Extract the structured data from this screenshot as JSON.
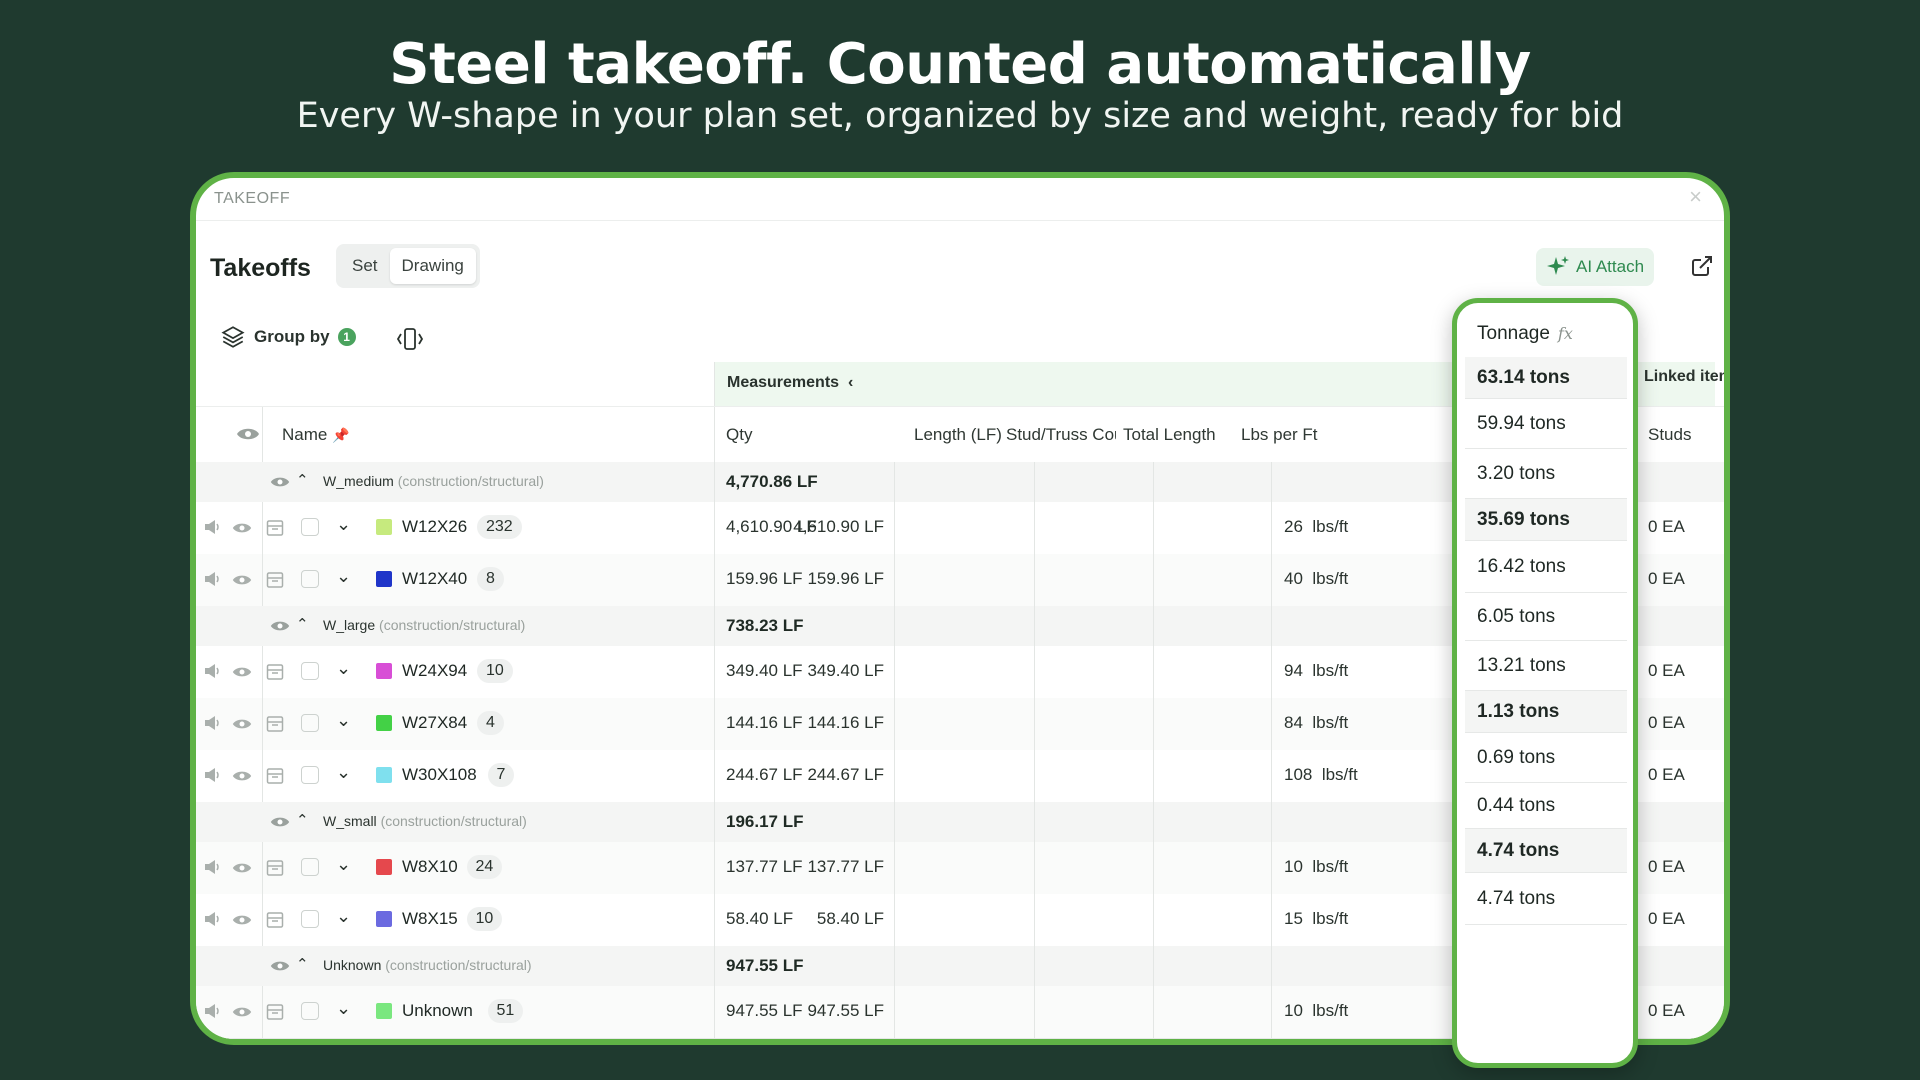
{
  "hero": {
    "title": "Steel takeoff. Counted automatically",
    "subtitle": "Every W-shape in your plan set, organized by size and weight, ready for bid"
  },
  "window": {
    "title": "TAKEOFF",
    "heading": "Takeoffs",
    "toggle": [
      "Set",
      "Drawing"
    ],
    "toggle_active": "Drawing",
    "ai_attach_label": "AI Attach",
    "group_by_label": "Group by",
    "group_by_count": "1"
  },
  "table": {
    "band_label": "Measurements",
    "linked_label": "Linked items",
    "headers": {
      "name": "Name",
      "qty": "Qty",
      "length": "Length (LF)",
      "stud": "Stud/Truss Coun",
      "total_length": "Total Length",
      "lbs_per_ft": "Lbs per Ft",
      "studs": "Studs"
    },
    "groups": [
      {
        "name": "W_medium",
        "path": "(construction/structural)",
        "qty": "4,770.86 LF",
        "items": [
          {
            "name": "W12X26",
            "count": "232",
            "color": "#c6ea7e",
            "qty": "4,610.90 LF",
            "length": "4,610.90 LF",
            "lbs": "26",
            "lbs_unit": "lbs/ft",
            "studs": "0 EA"
          },
          {
            "name": "W12X40",
            "count": "8",
            "color": "#1f35c9",
            "qty": "159.96 LF",
            "length": "159.96 LF",
            "lbs": "40",
            "lbs_unit": "lbs/ft",
            "studs": "0 EA"
          }
        ]
      },
      {
        "name": "W_large",
        "path": "(construction/structural)",
        "qty": "738.23 LF",
        "items": [
          {
            "name": "W24X94",
            "count": "10",
            "color": "#d84ed6",
            "qty": "349.40 LF",
            "length": "349.40 LF",
            "lbs": "94",
            "lbs_unit": "lbs/ft",
            "studs": "0 EA"
          },
          {
            "name": "W27X84",
            "count": "4",
            "color": "#43d146",
            "qty": "144.16 LF",
            "length": "144.16 LF",
            "lbs": "84",
            "lbs_unit": "lbs/ft",
            "studs": "0 EA"
          },
          {
            "name": "W30X108",
            "count": "7",
            "color": "#7fe0ee",
            "qty": "244.67 LF",
            "length": "244.67 LF",
            "lbs": "108",
            "lbs_unit": "lbs/ft",
            "studs": "0 EA"
          }
        ]
      },
      {
        "name": "W_small",
        "path": "(construction/structural)",
        "qty": "196.17 LF",
        "items": [
          {
            "name": "W8X10",
            "count": "24",
            "color": "#e5484d",
            "qty": "137.77 LF",
            "length": "137.77 LF",
            "lbs": "10",
            "lbs_unit": "lbs/ft",
            "studs": "0 EA"
          },
          {
            "name": "W8X15",
            "count": "10",
            "color": "#6b6ae0",
            "qty": "58.40 LF",
            "length": "58.40 LF",
            "lbs": "15",
            "lbs_unit": "lbs/ft",
            "studs": "0 EA"
          }
        ]
      },
      {
        "name": "Unknown",
        "path": "(construction/structural)",
        "qty": "947.55 LF",
        "items": [
          {
            "name": "Unknown",
            "count": "51",
            "color": "#7ae77f",
            "qty": "947.55 LF",
            "length": "947.55 LF",
            "lbs": "10",
            "lbs_unit": "lbs/ft",
            "studs": "0 EA"
          }
        ]
      }
    ]
  },
  "tonnage": {
    "header": "Tonnage",
    "fx": "fx",
    "values": [
      {
        "v": "63.14 tons",
        "bold": true
      },
      {
        "v": "59.94 tons",
        "bold": false
      },
      {
        "v": "3.20 tons",
        "bold": false
      },
      {
        "v": "35.69 tons",
        "bold": true
      },
      {
        "v": "16.42 tons",
        "bold": false
      },
      {
        "v": "6.05 tons",
        "bold": false
      },
      {
        "v": "13.21 tons",
        "bold": false
      },
      {
        "v": "1.13 tons",
        "bold": true
      },
      {
        "v": "0.69 tons",
        "bold": false
      },
      {
        "v": "0.44 tons",
        "bold": false
      },
      {
        "v": "4.74 tons",
        "bold": true
      },
      {
        "v": "4.74 tons",
        "bold": false
      }
    ]
  }
}
